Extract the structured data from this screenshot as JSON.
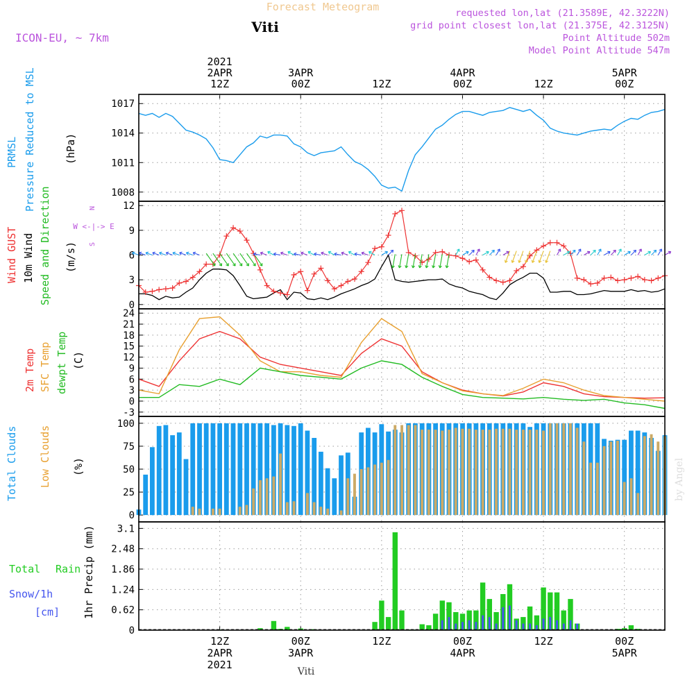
{
  "header": {
    "banner": "Forecast Meteogram",
    "location": "Viti",
    "model": "ICON-EU, ~ 7km",
    "requested": "requested lon,lat (21.3589E, 42.3222N)",
    "grid_point": "grid point closest lon,lat (21.375E, 42.3125N)",
    "point_altitude": "Point Altitude 502m",
    "model_altitude": "Model Point Altitude 547m"
  },
  "footer": {
    "location": "Viti",
    "watermark": "by Angel"
  },
  "time_axis": {
    "start_hour": 0,
    "end_hour": 78,
    "grid_hours": [
      12,
      24,
      36,
      48,
      60,
      72
    ],
    "top_labels": [
      {
        "hour": 12,
        "lines": [
          "2021",
          "2APR",
          "12Z"
        ]
      },
      {
        "hour": 24,
        "lines": [
          "3APR",
          "00Z"
        ]
      },
      {
        "hour": 36,
        "lines": [
          "12Z"
        ]
      },
      {
        "hour": 48,
        "lines": [
          "4APR",
          "00Z"
        ]
      },
      {
        "hour": 60,
        "lines": [
          "12Z"
        ]
      },
      {
        "hour": 72,
        "lines": [
          "5APR",
          "00Z"
        ]
      }
    ],
    "bottom_labels": [
      {
        "hour": 12,
        "lines": [
          "12Z",
          "2APR",
          "2021"
        ]
      },
      {
        "hour": 24,
        "lines": [
          "00Z",
          "3APR"
        ]
      },
      {
        "hour": 36,
        "lines": [
          "12Z"
        ]
      },
      {
        "hour": 48,
        "lines": [
          "00Z",
          "4APR"
        ]
      },
      {
        "hour": 60,
        "lines": [
          "12Z"
        ]
      },
      {
        "hour": 72,
        "lines": [
          "00Z",
          "5APR"
        ]
      }
    ]
  },
  "colors": {
    "pressure": "#1a9cec",
    "gust": "#ee3333",
    "wind": "#000000",
    "wind_label": "#22bb22",
    "compass": "#bb55dd",
    "temp2m": "#ee3333",
    "sfc": "#e8a030",
    "dewpt": "#22bb22",
    "total_clouds": "#1a9cec",
    "low_clouds": "#ccaa66",
    "rain": "#22cc22",
    "snow": "#4455ee",
    "header_purple": "#bb55dd",
    "banner": "#f0c890"
  },
  "panels": {
    "pressure": {
      "labels": [
        "PRMSL",
        "Pressure Reduced to MSL",
        "(hPa)"
      ],
      "yticks": [
        "1008",
        "1011",
        "1014",
        "1017"
      ]
    },
    "wind": {
      "labels": [
        "Wind GUST",
        "10m Wind",
        "Speed and Direction",
        "(m/s)"
      ],
      "compass": [
        "N",
        "W <-|-> E",
        "S"
      ],
      "yticks": [
        "0",
        "3",
        "6",
        "9",
        "12"
      ]
    },
    "temp": {
      "labels": [
        "2m Temp",
        "SFC Temp",
        "dewpt Temp",
        "(C)"
      ],
      "yticks": [
        "-3",
        "0",
        "3",
        "6",
        "9",
        "12",
        "15",
        "18",
        "21",
        "24"
      ]
    },
    "clouds": {
      "labels": [
        "Total Clouds",
        "Low Clouds",
        "(%)"
      ],
      "yticks": [
        "0",
        "25",
        "50",
        "75",
        "100"
      ]
    },
    "precip": {
      "labels": [
        "Total",
        "Rain",
        "Snow/1h",
        "[cm]",
        "1hr Precip (mm)"
      ],
      "yticks": [
        "0",
        "0.62",
        "1.24",
        "1.86",
        "2.48",
        "3.1"
      ]
    }
  },
  "chart_data": [
    {
      "type": "line",
      "title": "PRMSL Pressure Reduced to MSL",
      "ylabel": "hPa",
      "ylim": [
        1007.5,
        1017.5
      ],
      "x": [
        0,
        1,
        2,
        3,
        4,
        5,
        6,
        7,
        8,
        9,
        10,
        11,
        12,
        13,
        14,
        15,
        16,
        17,
        18,
        19,
        20,
        21,
        22,
        23,
        24,
        25,
        26,
        27,
        28,
        29,
        30,
        31,
        32,
        33,
        34,
        35,
        36,
        37,
        38,
        39,
        40,
        41,
        42,
        43,
        44,
        45,
        46,
        47,
        48,
        49,
        50,
        51,
        52,
        53,
        54,
        55,
        56,
        57,
        58,
        59,
        60,
        61,
        62,
        63,
        64,
        65,
        66,
        67,
        68,
        69,
        70,
        71,
        72,
        73,
        74,
        75,
        76,
        77,
        78
      ],
      "series": [
        {
          "name": "PRMSL",
          "values": [
            1016,
            1015.8,
            1016,
            1015.6,
            1016,
            1015.7,
            1015,
            1014.3,
            1014.1,
            1013.8,
            1013.4,
            1012.5,
            1011.3,
            1011.2,
            1011,
            1011.8,
            1012.6,
            1013,
            1013.7,
            1013.5,
            1013.8,
            1013.8,
            1013.7,
            1012.9,
            1012.6,
            1012,
            1011.7,
            1012,
            1012.1,
            1012.2,
            1012.6,
            1011.8,
            1011.1,
            1010.8,
            1010.3,
            1009.6,
            1008.7,
            1008.4,
            1008.5,
            1008.1,
            1010.2,
            1011.8,
            1012.6,
            1013.5,
            1014.4,
            1014.8,
            1015.4,
            1015.9,
            1016.2,
            1016.2,
            1016,
            1015.8,
            1016.1,
            1016.2,
            1016.3,
            1016.6,
            1016.4,
            1016.2,
            1016.4,
            1015.8,
            1015.3,
            1014.5,
            1014.2,
            1014,
            1013.9,
            1013.8,
            1014,
            1014.2,
            1014.3,
            1014.4,
            1014.3,
            1014.8,
            1015.2,
            1015.5,
            1015.4,
            1015.8,
            1016.1,
            1016.2,
            1016.4
          ]
        }
      ]
    },
    {
      "type": "line",
      "title": "Wind GUST / 10m Wind Speed",
      "ylabel": "m/s",
      "ylim": [
        0,
        12
      ],
      "x": [
        0,
        1,
        2,
        3,
        4,
        5,
        6,
        7,
        8,
        9,
        10,
        11,
        12,
        13,
        14,
        15,
        16,
        17,
        18,
        19,
        20,
        21,
        22,
        23,
        24,
        25,
        26,
        27,
        28,
        29,
        30,
        31,
        32,
        33,
        34,
        35,
        36,
        37,
        38,
        39,
        40,
        41,
        42,
        43,
        44,
        45,
        46,
        47,
        48,
        49,
        50,
        51,
        52,
        53,
        54,
        55,
        56,
        57,
        58,
        59,
        60,
        61,
        62,
        63,
        64,
        65,
        66,
        67,
        68,
        69,
        70,
        71,
        72,
        73,
        74,
        75,
        76,
        77,
        78
      ],
      "series": [
        {
          "name": "Wind GUST",
          "values": [
            2.3,
            1.5,
            1.6,
            1.8,
            1.9,
            2,
            2.6,
            2.8,
            3.3,
            4,
            4.9,
            4.9,
            6,
            8.3,
            9.3,
            8.9,
            7.8,
            6.2,
            4.2,
            2.3,
            1.6,
            1.4,
            1.2,
            3.6,
            4,
            1.7,
            3.7,
            4.4,
            2.9,
            1.9,
            2.3,
            2.8,
            3.1,
            4,
            5.1,
            6.8,
            7,
            8.4,
            11,
            11.4,
            6.3,
            5.9,
            5.1,
            5.5,
            6.3,
            6.4,
            6,
            5.9,
            5.6,
            5.2,
            5.4,
            4.2,
            3.3,
            2.9,
            2.7,
            2.9,
            4.1,
            4.6,
            5.9,
            6.6,
            7.1,
            7.5,
            7.5,
            7.1,
            6.2,
            3.2,
            3,
            2.5,
            2.6,
            3.2,
            3.3,
            2.9,
            3,
            3.2,
            3.4,
            3,
            2.9,
            3.2,
            3.5
          ]
        },
        {
          "name": "10m Wind",
          "values": [
            1.3,
            1.3,
            1.1,
            0.6,
            1,
            0.8,
            0.9,
            1.5,
            2,
            3,
            3.8,
            4.3,
            4.3,
            4.2,
            3.5,
            2.3,
            1,
            0.7,
            0.8,
            0.9,
            1.4,
            1.8,
            0.6,
            1.5,
            1.4,
            0.7,
            0.6,
            0.8,
            0.6,
            0.9,
            1.3,
            1.6,
            1.9,
            2.3,
            2.6,
            3.1,
            4.6,
            6,
            3,
            2.8,
            2.7,
            2.8,
            2.9,
            3,
            3,
            3.1,
            2.5,
            2.2,
            2,
            1.6,
            1.4,
            1.2,
            0.8,
            0.6,
            1.4,
            2.4,
            2.9,
            3.3,
            3.8,
            3.8,
            3.2,
            1.5,
            1.5,
            1.6,
            1.6,
            1.2,
            1.2,
            1.3,
            1.5,
            1.7,
            1.6,
            1.6,
            1.6,
            1.8,
            1.6,
            1.7,
            1.5,
            1.6,
            1.9
          ]
        }
      ]
    },
    {
      "type": "line",
      "title": "2m Temp / SFC Temp / dewpt Temp",
      "ylabel": "C",
      "ylim": [
        -3,
        24
      ],
      "x": [
        0,
        3,
        6,
        9,
        12,
        15,
        18,
        21,
        24,
        27,
        30,
        33,
        36,
        39,
        42,
        45,
        48,
        51,
        54,
        57,
        60,
        63,
        66,
        69,
        72,
        75,
        78
      ],
      "series": [
        {
          "name": "2m Temp",
          "values": [
            6,
            4,
            11,
            17,
            19,
            17,
            12,
            10,
            9,
            8,
            7,
            13,
            17,
            15,
            8,
            5,
            3,
            2,
            1.4,
            2.5,
            5,
            4,
            2,
            1.2,
            1,
            0.8,
            0.9
          ]
        },
        {
          "name": "SFC Temp",
          "values": [
            3,
            2,
            14,
            22.5,
            23,
            18,
            11,
            8,
            8,
            7,
            6.5,
            16,
            22.5,
            19,
            7.5,
            5,
            2.8,
            2,
            1.5,
            3.5,
            6,
            5,
            3,
            1.5,
            1,
            0.5,
            0
          ]
        },
        {
          "name": "dewpt Temp",
          "values": [
            1,
            1,
            4.5,
            4,
            6,
            4.5,
            9,
            8,
            7,
            6.5,
            6,
            9,
            11,
            10,
            6.5,
            4,
            1.8,
            1,
            0.8,
            0.6,
            1,
            0.5,
            0.2,
            0.5,
            -0.5,
            -1,
            -2
          ]
        }
      ]
    },
    {
      "type": "bar",
      "title": "Total Clouds / Low Clouds",
      "ylabel": "%",
      "ylim": [
        0,
        100
      ],
      "x": [
        0,
        1,
        2,
        3,
        4,
        5,
        6,
        7,
        8,
        9,
        10,
        11,
        12,
        13,
        14,
        15,
        16,
        17,
        18,
        19,
        20,
        21,
        22,
        23,
        24,
        25,
        26,
        27,
        28,
        29,
        30,
        31,
        32,
        33,
        34,
        35,
        36,
        37,
        38,
        39,
        40,
        41,
        42,
        43,
        44,
        45,
        46,
        47,
        48,
        49,
        50,
        51,
        52,
        53,
        54,
        55,
        56,
        57,
        58,
        59,
        60,
        61,
        62,
        63,
        64,
        65,
        66,
        67,
        68,
        69,
        70,
        71,
        72,
        73,
        74,
        75,
        76,
        77,
        78
      ],
      "series": [
        {
          "name": "Total Clouds",
          "values": [
            6,
            44,
            74,
            97,
            98,
            87,
            90,
            61,
            100,
            100,
            100,
            100,
            100,
            100,
            100,
            100,
            100,
            100,
            100,
            100,
            98,
            100,
            98,
            97,
            100,
            92,
            84,
            69,
            51,
            40,
            65,
            68,
            20,
            90,
            95,
            90,
            99,
            91,
            93,
            90,
            100,
            100,
            100,
            100,
            100,
            100,
            100,
            100,
            100,
            100,
            100,
            100,
            100,
            100,
            100,
            100,
            100,
            100,
            96,
            100,
            100,
            100,
            100,
            100,
            100,
            100,
            100,
            100,
            100,
            83,
            81,
            82,
            82,
            92,
            92,
            90,
            84,
            70,
            87
          ]
        },
        {
          "name": "Low Clouds",
          "values": [
            0,
            0,
            0,
            0,
            0,
            0,
            0,
            0,
            9,
            7,
            0,
            7,
            7,
            0,
            0,
            9,
            11,
            29,
            38,
            40,
            42,
            67,
            14,
            15,
            0,
            24,
            14,
            9,
            7,
            0,
            5,
            40,
            45,
            50,
            52,
            55,
            57,
            60,
            98,
            98,
            98,
            98,
            93,
            93,
            93,
            92,
            93,
            95,
            94,
            94,
            93,
            93,
            93,
            94,
            94,
            94,
            93,
            93,
            93,
            93,
            92,
            100,
            100,
            100,
            100,
            95,
            80,
            57,
            57,
            75,
            80,
            81,
            36,
            40,
            24,
            86,
            88,
            80,
            86
          ]
        }
      ]
    },
    {
      "type": "bar",
      "title": "1hr Precip (Total Rain, Snow/1h)",
      "ylabel": "mm",
      "ylim": [
        0,
        3.1
      ],
      "x": [
        0,
        1,
        2,
        3,
        4,
        5,
        6,
        7,
        8,
        9,
        10,
        11,
        12,
        13,
        14,
        15,
        16,
        17,
        18,
        19,
        20,
        21,
        22,
        23,
        24,
        25,
        26,
        27,
        28,
        29,
        30,
        31,
        32,
        33,
        34,
        35,
        36,
        37,
        38,
        39,
        40,
        41,
        42,
        43,
        44,
        45,
        46,
        47,
        48,
        49,
        50,
        51,
        52,
        53,
        54,
        55,
        56,
        57,
        58,
        59,
        60,
        61,
        62,
        63,
        64,
        65,
        66,
        67,
        68,
        69,
        70,
        71,
        72,
        73,
        74,
        75,
        76,
        77,
        78
      ],
      "series": [
        {
          "name": "Total Rain",
          "values": [
            0,
            0,
            0,
            0,
            0,
            0,
            0,
            0,
            0,
            0,
            0,
            0,
            0.02,
            0,
            0,
            0,
            0,
            0,
            0.06,
            0,
            0.28,
            0.04,
            0.1,
            0,
            0.05,
            0,
            0.03,
            0,
            0,
            0,
            0,
            0,
            0,
            0,
            0,
            0.25,
            0.9,
            0.4,
            2.98,
            0.6,
            0.02,
            0.02,
            0.18,
            0.15,
            0.5,
            0.9,
            0.85,
            0.55,
            0.5,
            0.6,
            0.6,
            1.45,
            0.95,
            0.55,
            1.1,
            1.4,
            0.35,
            0.4,
            0.72,
            0.45,
            1.3,
            1.15,
            1.15,
            0.6,
            0.95,
            0.2,
            0,
            0,
            0,
            0,
            0,
            0.04,
            0.06,
            0.15,
            0.04,
            0,
            0,
            0,
            0
          ]
        },
        {
          "name": "Snow/1h",
          "values": [
            0,
            0,
            0,
            0,
            0,
            0,
            0,
            0,
            0,
            0,
            0,
            0,
            0,
            0,
            0,
            0,
            0,
            0,
            0,
            0,
            0,
            0,
            0,
            0,
            0,
            0,
            0,
            0,
            0,
            0,
            0,
            0,
            0,
            0,
            0,
            0,
            0,
            0,
            0,
            0,
            0,
            0,
            0,
            0,
            0,
            0.3,
            0.4,
            0.2,
            0.25,
            0.3,
            0.25,
            0.45,
            0.4,
            0.2,
            0.7,
            0.75,
            0.3,
            0.2,
            0.2,
            0.15,
            0.35,
            0.4,
            0.3,
            0.2,
            0.3,
            0.2,
            0,
            0,
            0,
            0,
            0,
            0,
            0,
            0,
            0,
            0,
            0,
            0,
            0
          ]
        }
      ]
    }
  ]
}
